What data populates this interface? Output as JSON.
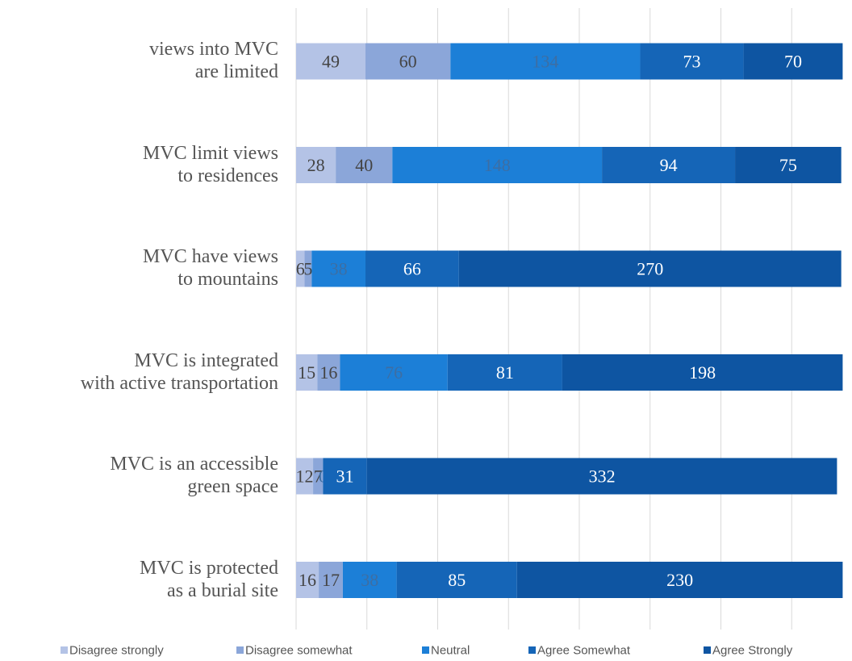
{
  "chart_data": {
    "type": "stacked-barh",
    "categories": [
      "views into MVC\nare limited",
      "MVC limit views\nto residences",
      "MVC have views\nto mountains",
      "MVC is integrated\nwith active transportation",
      "MVC is an accessible\ngreen space",
      "MVC is protected\nas a burial site"
    ],
    "series": [
      {
        "name": "Disagree strongly",
        "color": "#b4c3e6",
        "values": [
          49,
          28,
          6,
          15,
          12,
          16
        ]
      },
      {
        "name": "Disagree somewhat",
        "color": "#8ba6d9",
        "values": [
          60,
          40,
          5,
          16,
          7,
          17
        ]
      },
      {
        "name": "Neutral",
        "color": "#1c7fd7",
        "values": [
          134,
          148,
          38,
          76,
          0,
          38
        ]
      },
      {
        "name": "Agree Somewhat",
        "color": "#1565b7",
        "values": [
          73,
          94,
          66,
          81,
          31,
          85
        ]
      },
      {
        "name": "Agree Strongly",
        "color": "#0e55a2",
        "values": [
          70,
          75,
          270,
          198,
          332,
          230
        ]
      }
    ],
    "xlim": [
      0,
      400
    ],
    "xticks": [
      0,
      50,
      100,
      150,
      200,
      250,
      300,
      350
    ],
    "grid": true,
    "legend": "bottom"
  }
}
